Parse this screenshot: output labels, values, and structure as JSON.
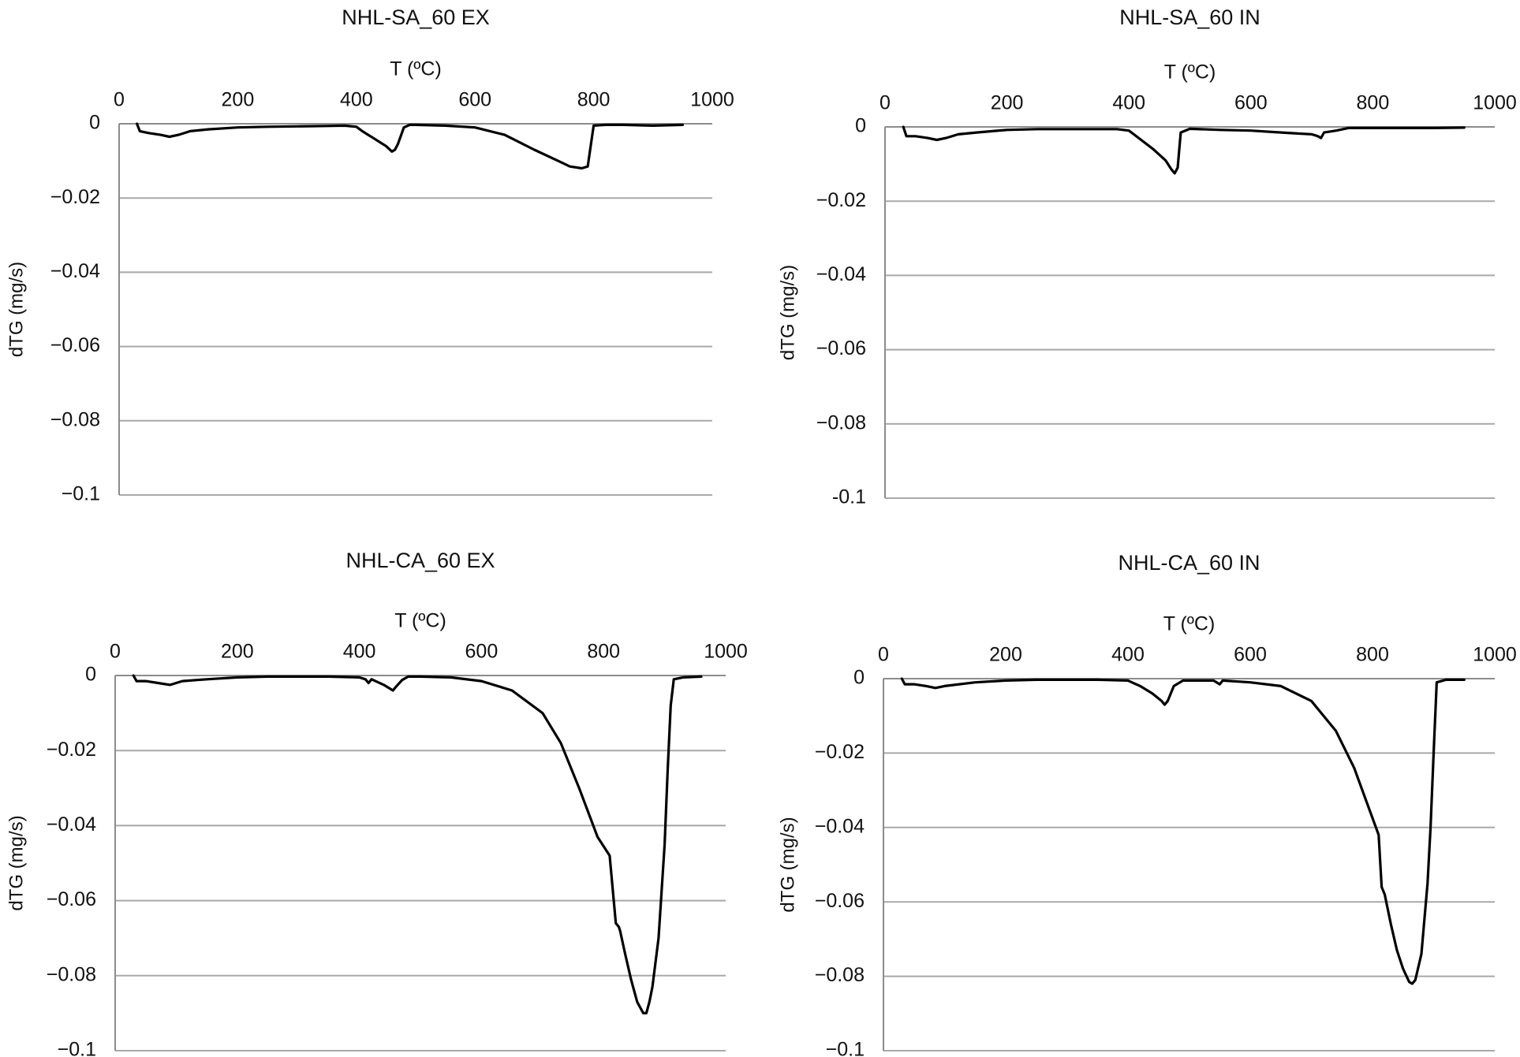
{
  "chart_data": [
    {
      "type": "line",
      "title": "NHL-SA_60 EX",
      "xlabel": "T (ºC)",
      "ylabel": "dTG (mg/s)",
      "xlim": [
        0,
        1000
      ],
      "ylim": [
        -0.1,
        0
      ],
      "x_ticks": [
        "0",
        "200",
        "400",
        "600",
        "800",
        "1000"
      ],
      "y_ticks": [
        "0",
        "−0.02",
        "−0.04",
        "−0.06",
        "−0.08",
        "−0.1"
      ],
      "x_axis_position": "top",
      "grid": "horizontal",
      "legend": "none",
      "line_color": "#000000",
      "series": [
        {
          "x": [
            30,
            35,
            50,
            70,
            85,
            100,
            120,
            150,
            200,
            250,
            300,
            350,
            380,
            400,
            410,
            420,
            430,
            440,
            450,
            460,
            465,
            470,
            480,
            490,
            500,
            550,
            600,
            650,
            700,
            740,
            760,
            780,
            790,
            800,
            820,
            850,
            900,
            950
          ],
          "y": [
            0,
            -0.002,
            -0.0025,
            -0.003,
            -0.0035,
            -0.003,
            -0.002,
            -0.0015,
            -0.001,
            -0.0008,
            -0.0007,
            -0.0006,
            -0.0005,
            -0.0008,
            -0.002,
            -0.003,
            -0.004,
            -0.005,
            -0.006,
            -0.0075,
            -0.007,
            -0.0055,
            -0.001,
            -0.0003,
            -0.0003,
            -0.0005,
            -0.001,
            -0.003,
            -0.007,
            -0.01,
            -0.0115,
            -0.012,
            -0.0115,
            -0.0005,
            -0.0003,
            -0.0003,
            -0.0005,
            -0.0003
          ]
        }
      ]
    },
    {
      "type": "line",
      "title": "NHL-SA_60 IN",
      "xlabel": "T (ºC)",
      "ylabel": "dTG (mg/s)",
      "xlim": [
        0,
        1000
      ],
      "ylim": [
        -0.1,
        0
      ],
      "x_ticks": [
        "0",
        "200",
        "400",
        "600",
        "800",
        "1000"
      ],
      "y_ticks": [
        "0",
        "−0.02",
        "−0.04",
        "−0.06",
        "−0.08",
        "-0.1"
      ],
      "x_axis_position": "top",
      "grid": "horizontal",
      "legend": "none",
      "line_color": "#000000",
      "series": [
        {
          "x": [
            30,
            35,
            50,
            70,
            85,
            100,
            120,
            150,
            200,
            250,
            300,
            350,
            380,
            400,
            420,
            440,
            460,
            470,
            475,
            480,
            485,
            500,
            550,
            600,
            650,
            700,
            710,
            715,
            720,
            740,
            760,
            800,
            850,
            900,
            950
          ],
          "y": [
            0,
            -0.0025,
            -0.0025,
            -0.003,
            -0.0035,
            -0.003,
            -0.002,
            -0.0015,
            -0.0008,
            -0.0006,
            -0.0006,
            -0.0006,
            -0.0006,
            -0.001,
            -0.0035,
            -0.006,
            -0.009,
            -0.0115,
            -0.0125,
            -0.011,
            -0.0015,
            -0.0005,
            -0.0008,
            -0.001,
            -0.0015,
            -0.002,
            -0.0025,
            -0.003,
            -0.0015,
            -0.001,
            -0.0003,
            -0.0003,
            -0.0003,
            -0.0003,
            -0.0002
          ]
        }
      ]
    },
    {
      "type": "line",
      "title": "NHL-CA_60 EX",
      "xlabel": "T (ºC)",
      "ylabel": "dTG (mg/s)",
      "xlim": [
        0,
        1000
      ],
      "ylim": [
        -0.1,
        0
      ],
      "x_ticks": [
        "0",
        "200",
        "400",
        "600",
        "800",
        "1000"
      ],
      "y_ticks": [
        "0",
        "−0.02",
        "−0.04",
        "−0.06",
        "−0.08",
        "−0.1"
      ],
      "x_axis_position": "top",
      "grid": "horizontal",
      "legend": "none",
      "line_color": "#000000",
      "series": [
        {
          "x": [
            30,
            35,
            50,
            70,
            90,
            110,
            150,
            200,
            250,
            300,
            350,
            400,
            410,
            415,
            420,
            440,
            455,
            460,
            470,
            480,
            500,
            550,
            600,
            650,
            700,
            730,
            760,
            790,
            810,
            820,
            825,
            827,
            835,
            845,
            855,
            865,
            870,
            875,
            880,
            890,
            900,
            905,
            910,
            915,
            930,
            960
          ],
          "y": [
            0,
            -0.0015,
            -0.0015,
            -0.002,
            -0.0025,
            -0.0015,
            -0.001,
            -0.0005,
            -0.0003,
            -0.0003,
            -0.0003,
            -0.0005,
            -0.001,
            -0.002,
            -0.001,
            -0.0025,
            -0.004,
            -0.003,
            -0.0012,
            -0.0003,
            -0.0003,
            -0.0005,
            -0.0015,
            -0.004,
            -0.01,
            -0.018,
            -0.03,
            -0.043,
            -0.048,
            -0.066,
            -0.067,
            -0.068,
            -0.074,
            -0.081,
            -0.087,
            -0.09,
            -0.09,
            -0.087,
            -0.083,
            -0.07,
            -0.045,
            -0.025,
            -0.008,
            -0.001,
            -0.0005,
            -0.0003
          ]
        }
      ]
    },
    {
      "type": "line",
      "title": "NHL-CA_60 IN",
      "xlabel": "T (ºC)",
      "ylabel": "dTG (mg/s)",
      "xlim": [
        0,
        1000
      ],
      "ylim": [
        -0.1,
        0
      ],
      "x_ticks": [
        "0",
        "200",
        "400",
        "600",
        "800",
        "1000"
      ],
      "y_ticks": [
        "0",
        "−0.02",
        "−0.04",
        "−0.06",
        "−0.08",
        "−0.1"
      ],
      "x_axis_position": "top",
      "grid": "horizontal",
      "legend": "none",
      "line_color": "#000000",
      "series": [
        {
          "x": [
            30,
            35,
            50,
            70,
            85,
            100,
            150,
            200,
            250,
            300,
            350,
            400,
            420,
            440,
            455,
            460,
            465,
            475,
            490,
            500,
            540,
            550,
            555,
            600,
            650,
            700,
            740,
            770,
            790,
            810,
            815,
            820,
            830,
            840,
            850,
            860,
            865,
            870,
            880,
            890,
            895,
            900,
            905,
            920,
            950
          ],
          "y": [
            0,
            -0.0015,
            -0.0015,
            -0.002,
            -0.0025,
            -0.002,
            -0.001,
            -0.0005,
            -0.0003,
            -0.0003,
            -0.0003,
            -0.0005,
            -0.002,
            -0.004,
            -0.006,
            -0.007,
            -0.006,
            -0.002,
            -0.0005,
            -0.0005,
            -0.0005,
            -0.0015,
            -0.0005,
            -0.001,
            -0.002,
            -0.006,
            -0.014,
            -0.024,
            -0.033,
            -0.042,
            -0.056,
            -0.058,
            -0.066,
            -0.073,
            -0.078,
            -0.0815,
            -0.082,
            -0.081,
            -0.074,
            -0.055,
            -0.04,
            -0.02,
            -0.001,
            -0.0003,
            -0.0003
          ]
        }
      ]
    }
  ]
}
